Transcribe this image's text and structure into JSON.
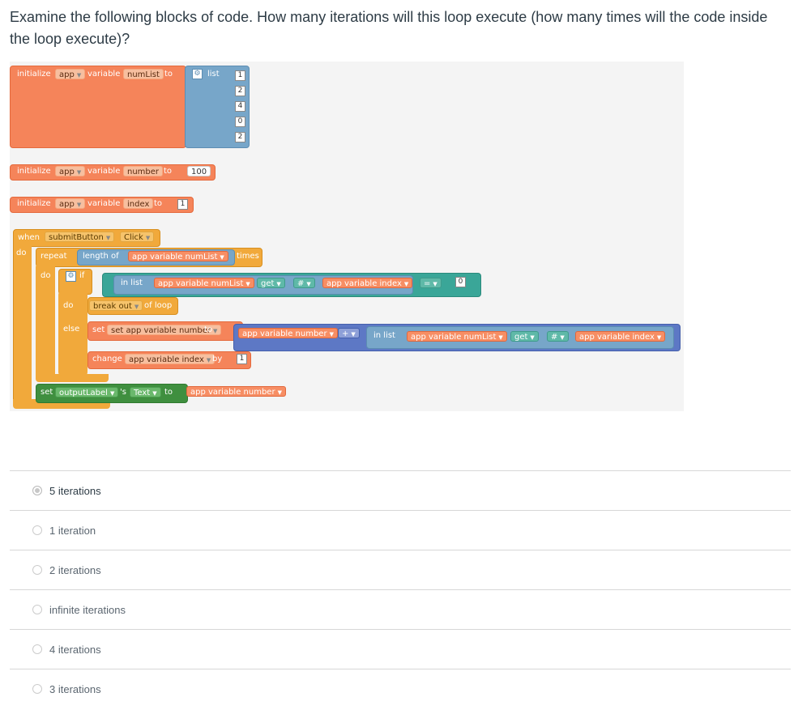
{
  "question": "Examine the following blocks of code. How many iterations will this loop execute (how many times will the code inside the loop execute)?",
  "blocks": {
    "init1": {
      "initialize": "initialize",
      "app": "app",
      "variable": "variable",
      "name": "numList",
      "to": "to",
      "list": "list",
      "items": [
        "1",
        "2",
        "4",
        "0",
        "2"
      ]
    },
    "init2": {
      "initialize": "initialize",
      "app": "app",
      "variable": "variable",
      "name": "number",
      "to": "to",
      "value": "100"
    },
    "init3": {
      "initialize": "initialize",
      "app": "app",
      "variable": "variable",
      "name": "index",
      "to": "to",
      "value": "1"
    },
    "event": {
      "when": "when",
      "component": "submitButton",
      "event": "Click",
      "do": "do"
    },
    "repeat": {
      "repeat": "repeat",
      "length_of": "length of",
      "var": "app variable numList",
      "times": "times",
      "do": "do"
    },
    "if": {
      "if": "if",
      "in_list": "in list",
      "list_var": "app variable numList",
      "get": "get",
      "hash": "#",
      "index_var": "app variable index",
      "eq": "=",
      "zero": "0"
    },
    "do_branch": {
      "do": "do",
      "break_out": "break out",
      "of_loop": "of loop"
    },
    "else_branch": {
      "else": "else",
      "set": "set app variable number",
      "to": "to",
      "number_var": "app variable number",
      "op": "+",
      "in_list": "in list",
      "list_var": "app variable numList",
      "get": "get",
      "hash": "#",
      "index_var": "app variable index"
    },
    "change": {
      "change": "change",
      "var": "app variable index",
      "by": "by",
      "value": "1"
    },
    "set_output": {
      "set": "set",
      "component": "outputLabel",
      "s": "'s",
      "prop": "Text",
      "to": "to",
      "var": "app variable number"
    }
  },
  "options": [
    {
      "label": "5 iterations",
      "selected": true
    },
    {
      "label": "1 iteration",
      "selected": false
    },
    {
      "label": "2 iterations",
      "selected": false
    },
    {
      "label": "infinite iterations",
      "selected": false
    },
    {
      "label": "4 iterations",
      "selected": false
    },
    {
      "label": "3 iterations",
      "selected": false
    }
  ]
}
